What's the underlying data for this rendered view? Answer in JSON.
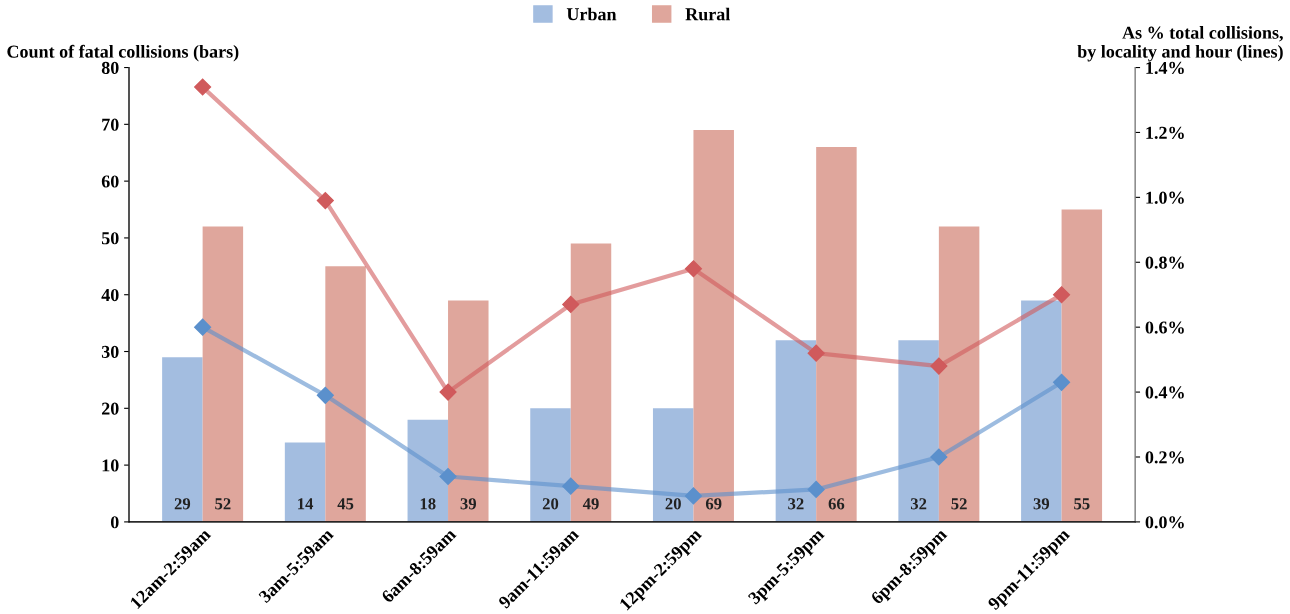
{
  "chart_data": {
    "type": "bar",
    "ylabel": "Count of fatal collisions (bars)",
    "y2label": "As % total collisions,\nby locality and hour (lines)",
    "categories": [
      "12am-2:59am",
      "3am-5:59am",
      "6am-8:59am",
      "9am-11:59am",
      "12pm-2:59pm",
      "3pm-5:59pm",
      "6pm-8:59pm",
      "9pm-11:59pm"
    ],
    "series": [
      {
        "name": "Urban",
        "color": "#a3bde0",
        "values": [
          29,
          14,
          18,
          20,
          20,
          32,
          32,
          39
        ],
        "value_labels": [
          "29",
          "14",
          "18",
          "20",
          "20",
          "32",
          "32",
          "39"
        ]
      },
      {
        "name": "Rural",
        "color": "#dfa69c",
        "values": [
          52,
          45,
          39,
          49,
          69,
          66,
          52,
          55
        ],
        "value_labels": [
          "52",
          "45",
          "39",
          "49",
          "69",
          "66",
          "52",
          "55"
        ]
      },
      {
        "type": "line",
        "axis": "y2",
        "color": "#5b90cc",
        "marker": "diamond",
        "values": [
          0.6,
          0.39,
          0.14,
          0.11,
          0.08,
          0.1,
          0.2,
          0.43
        ]
      },
      {
        "type": "line",
        "axis": "y2",
        "color": "#d05a5c",
        "marker": "diamond",
        "values": [
          1.34,
          0.99,
          0.4,
          0.67,
          0.78,
          0.52,
          0.48,
          0.7
        ]
      }
    ],
    "ylim": [
      0,
      80
    ],
    "yticks": [
      0,
      10,
      20,
      30,
      40,
      50,
      60,
      70,
      80
    ],
    "y2lim": [
      0,
      1.4
    ],
    "y2ticks": [
      {
        "value": 0,
        "label": "0.0%"
      },
      {
        "value": 0.2,
        "label": "0.2%"
      },
      {
        "value": 0.4,
        "label": "0.4%"
      },
      {
        "value": 0.6,
        "label": "0.6%"
      },
      {
        "value": 0.8,
        "label": "0.8%"
      },
      {
        "value": 1.0,
        "label": "1.0%"
      },
      {
        "value": 1.2,
        "label": "1.2%"
      },
      {
        "value": 1.4,
        "label": "1.4%"
      }
    ],
    "legend": "top",
    "grid": false
  }
}
